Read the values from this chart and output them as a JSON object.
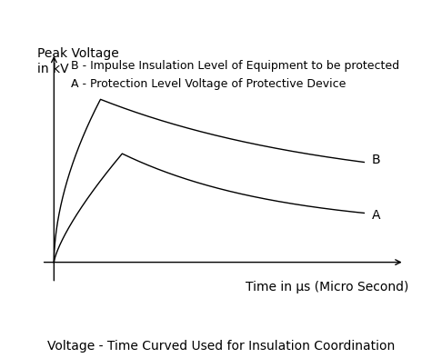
{
  "title": "Voltage - Time Curved Used for Insulation Coordination",
  "ylabel": "Peak Voltage\nin kV",
  "xlabel": "Time in μs (Micro Second)",
  "legend_line1": "B - Impulse Insulation Level of Equipment to be protected",
  "legend_line2": "A - Protection Level Voltage of Protective Device",
  "label_B": "B",
  "label_A": "A",
  "bg_color": "#ffffff",
  "line_color": "#000000",
  "title_fontsize": 10,
  "label_fontsize": 10,
  "legend_fontsize": 9,
  "annotation_fontsize": 10
}
